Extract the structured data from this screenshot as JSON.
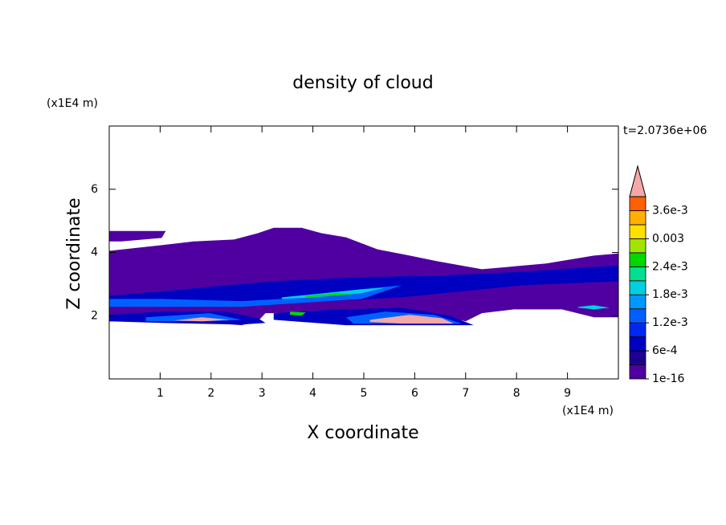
{
  "chart_data": {
    "type": "contour",
    "title": "density of cloud",
    "xlabel": "X coordinate",
    "ylabel": "Z coordinate",
    "xunit": "(x1E4 m)",
    "yunit": "(x1E4 m)",
    "time_label": "t=2.0736e+06",
    "xlim": [
      0,
      10
    ],
    "ylim": [
      0,
      8
    ],
    "xticks": [
      1,
      2,
      3,
      4,
      5,
      6,
      7,
      8,
      9
    ],
    "yticks": [
      2,
      4,
      6
    ],
    "colorbar": {
      "levels": [
        1e-16,
        0.0003,
        0.0006,
        0.0009,
        0.0012,
        0.0015,
        0.0018,
        0.0021,
        0.0024,
        0.0027,
        0.003,
        0.0033,
        0.0036,
        0.0039
      ],
      "colors": [
        "#5000a0",
        "#1e0090",
        "#0000c0",
        "#0028f0",
        "#0060ff",
        "#0098ff",
        "#00d0e0",
        "#00e090",
        "#00d800",
        "#a0e400",
        "#ffe000",
        "#ffb000",
        "#ff6000"
      ],
      "extend_color": "#f4a8a8",
      "ticks": [
        {
          "value": 1e-16,
          "label": "1e-16"
        },
        {
          "value": 0.0006,
          "label": "6e-4"
        },
        {
          "value": 0.0012,
          "label": "1.2e-3"
        },
        {
          "value": 0.0018,
          "label": "1.8e-3"
        },
        {
          "value": 0.0024,
          "label": "2.4e-3"
        },
        0.003,
        {
          "value": 0.0036,
          "label": "3.6e-3"
        }
      ]
    },
    "regions": [
      {
        "level": 0,
        "x": [
          0,
          1.03,
          1.66,
          2.45,
          2.92,
          3.23,
          3.78,
          4.17,
          4.65,
          5.27,
          5.9,
          6.45,
          7.32,
          8.58,
          9.52,
          10,
          10,
          9.52,
          8.89,
          7.95,
          7.32,
          7.0,
          6.69,
          4.96,
          4.33,
          4.02,
          3.07,
          2.92,
          2.6,
          1.97,
          1.34,
          0.72,
          0
        ],
        "z": [
          4.05,
          4.23,
          4.35,
          4.41,
          4.61,
          4.78,
          4.78,
          4.61,
          4.48,
          4.1,
          3.9,
          3.72,
          3.47,
          3.65,
          3.9,
          3.97,
          1.95,
          1.95,
          2.2,
          2.2,
          2.08,
          1.82,
          1.95,
          1.95,
          1.87,
          2.08,
          2.08,
          1.82,
          1.7,
          1.77,
          1.77,
          1.82,
          1.82
        ]
      },
      {
        "level": 0,
        "x": [
          0,
          1.11,
          1.03,
          0.24,
          0
        ],
        "z": [
          4.68,
          4.68,
          4.46,
          4.35,
          4.35
        ]
      },
      {
        "level": 2,
        "x": [
          0,
          1.82,
          3.23,
          4.96,
          6.53,
          8.11,
          10,
          10,
          8.11,
          5.75,
          3.39,
          1.82,
          0
        ],
        "z": [
          2.63,
          2.89,
          3.09,
          3.22,
          3.27,
          3.39,
          3.59,
          3.09,
          2.96,
          2.58,
          2.38,
          2.38,
          2.33
        ]
      },
      {
        "level": 4,
        "x": [
          0,
          1.03,
          2.6,
          3.39,
          4.96,
          5.75,
          4.96,
          2.6,
          0
        ],
        "z": [
          2.53,
          2.53,
          2.46,
          2.53,
          2.84,
          2.96,
          2.53,
          2.28,
          2.28
        ]
      },
      {
        "level": 6,
        "x": [
          3.39,
          4.02,
          4.96,
          5.43,
          4.96,
          4.02,
          3.39
        ],
        "z": [
          2.58,
          2.68,
          2.84,
          2.89,
          2.71,
          2.58,
          2.53
        ]
      },
      {
        "level": 8,
        "x": [
          3.86,
          4.49,
          4.8,
          4.33,
          3.86
        ],
        "z": [
          2.63,
          2.71,
          2.68,
          2.63,
          2.58
        ]
      },
      {
        "level": 6,
        "x": [
          9.21,
          9.52,
          9.83,
          9.52,
          9.21
        ],
        "z": [
          2.28,
          2.33,
          2.25,
          2.2,
          2.25
        ]
      },
      {
        "level": 2,
        "x": [
          0,
          1.03,
          2.29,
          2.92,
          3.07,
          2.6,
          1.03,
          0
        ],
        "z": [
          2.03,
          2.13,
          2.13,
          1.92,
          1.77,
          1.72,
          1.77,
          1.82
        ]
      },
      {
        "level": 2,
        "x": [
          3.23,
          4.49,
          5.75,
          6.69,
          7.16,
          6.69,
          4.65,
          3.23
        ],
        "z": [
          2.08,
          2.2,
          2.25,
          2.0,
          1.7,
          1.7,
          1.7,
          1.87
        ]
      },
      {
        "level": 4,
        "x": [
          0.72,
          1.97,
          2.6,
          1.97,
          0.72
        ],
        "z": [
          1.95,
          2.08,
          1.87,
          1.82,
          1.82
        ]
      },
      {
        "level": 4,
        "x": [
          4.65,
          5.43,
          6.38,
          6.93,
          6.22,
          4.8
        ],
        "z": [
          1.95,
          2.13,
          2.03,
          1.75,
          1.75,
          1.75
        ]
      },
      {
        "level": 8,
        "x": [
          3.55,
          3.86,
          3.78,
          3.55
        ],
        "z": [
          2.13,
          2.1,
          2.0,
          2.03
        ]
      },
      {
        "level": 13,
        "x": [
          1.27,
          1.82,
          2.37,
          1.82
        ],
        "z": [
          1.85,
          1.95,
          1.87,
          1.82
        ]
      },
      {
        "level": 13,
        "x": [
          5.12,
          5.9,
          6.53,
          6.77,
          5.75,
          5.12
        ],
        "z": [
          1.87,
          2.03,
          1.92,
          1.75,
          1.75,
          1.8
        ]
      }
    ]
  }
}
